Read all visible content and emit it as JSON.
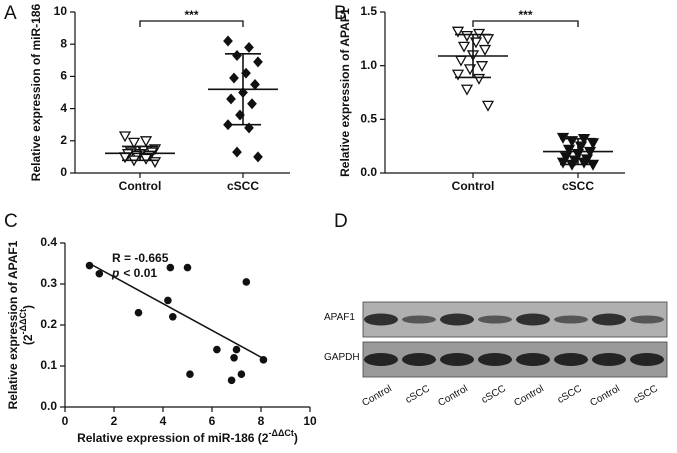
{
  "chart_data": [
    {
      "type": "dot",
      "panel_label": "A",
      "ylabel": "Relative expression of miR-186",
      "categories": [
        "Control",
        "cSCC"
      ],
      "ylim": [
        0,
        10
      ],
      "yticks": [
        0,
        2,
        4,
        6,
        8,
        10
      ],
      "significance": "***",
      "groups": [
        {
          "marker": "triangle-down-open",
          "color": "#111111",
          "mean": 1.22,
          "sd": 0.43,
          "values": [
            2.3,
            2.0,
            1.9,
            1.5,
            1.4,
            1.3,
            1.3,
            1.2,
            1.2,
            1.1,
            1.1,
            1.0,
            0.9,
            0.8,
            0.7
          ]
        },
        {
          "marker": "diamond",
          "color": "#111111",
          "mean": 5.2,
          "sd": 2.2,
          "values": [
            8.2,
            7.8,
            7.3,
            6.9,
            6.2,
            5.9,
            5.5,
            5.0,
            4.6,
            4.3,
            3.6,
            3.0,
            2.8,
            1.3,
            1.0
          ]
        }
      ]
    },
    {
      "type": "dot",
      "panel_label": "B",
      "ylabel": "Relative expression of APAF1",
      "categories": [
        "Control",
        "cSCC"
      ],
      "ylim": [
        0,
        1.5
      ],
      "yticks": [
        {
          "value": 0,
          "label": "0.0"
        },
        {
          "value": 0.5,
          "label": "0.5"
        },
        {
          "value": 1,
          "label": "1.0"
        },
        {
          "value": 1.5,
          "label": "1.5"
        }
      ],
      "significance": "***",
      "groups": [
        {
          "marker": "triangle-down-open",
          "color": "#111111",
          "mean": 1.09,
          "sd": 0.2,
          "values": [
            1.32,
            1.3,
            1.28,
            1.25,
            1.22,
            1.18,
            1.15,
            1.1,
            1.05,
            1.0,
            0.97,
            0.92,
            0.88,
            0.78,
            0.63
          ]
        },
        {
          "marker": "triangle-down",
          "color": "#111111",
          "mean": 0.2,
          "sd": 0.12,
          "values": [
            0.33,
            0.32,
            0.3,
            0.28,
            0.25,
            0.22,
            0.2,
            0.18,
            0.15,
            0.13,
            0.12,
            0.1,
            0.1,
            0.08,
            0.08
          ]
        }
      ]
    },
    {
      "type": "scatter",
      "panel_label": "C",
      "xlabel": "Relative expression of miR-186 (2",
      "xlabel_sup": "-ΔΔCt",
      "xlabel_end": ")",
      "ylabel": "Relative expression of APAF1",
      "ylabel2": "(2",
      "ylabel_sup": "-ΔΔCt",
      "ylabel_end": ")",
      "annotation_r": "R = -0.665",
      "annotation_p": "p",
      "annotation_p_value": "< 0.01",
      "xlim": [
        0,
        10
      ],
      "xticks": [
        0,
        2,
        4,
        6,
        8,
        10
      ],
      "ylim": [
        0,
        0.4
      ],
      "yticks": [
        {
          "value": 0,
          "label": "0.0"
        },
        {
          "value": 0.1,
          "label": "0.1"
        },
        {
          "value": 0.2,
          "label": "0.2"
        },
        {
          "value": 0.3,
          "label": "0.3"
        },
        {
          "value": 0.4,
          "label": "0.4"
        }
      ],
      "color": "#111111",
      "x": [
        1.0,
        1.4,
        3.0,
        4.2,
        4.3,
        4.4,
        5.0,
        5.1,
        6.2,
        6.8,
        6.9,
        7.0,
        7.2,
        7.4,
        8.1
      ],
      "y": [
        0.345,
        0.325,
        0.23,
        0.26,
        0.34,
        0.22,
        0.34,
        0.08,
        0.14,
        0.065,
        0.12,
        0.14,
        0.08,
        0.305,
        0.115
      ],
      "fit": {
        "x": [
          1.0,
          8.2
        ],
        "y": [
          0.35,
          0.115
        ]
      }
    }
  ],
  "panel_d": {
    "panel_label": "D",
    "rows": [
      "APAF1",
      "GAPDH"
    ],
    "lanes": [
      "Control",
      "cSCC",
      "Control",
      "cSCC",
      "Control",
      "cSCC",
      "Control",
      "cSCC"
    ]
  }
}
